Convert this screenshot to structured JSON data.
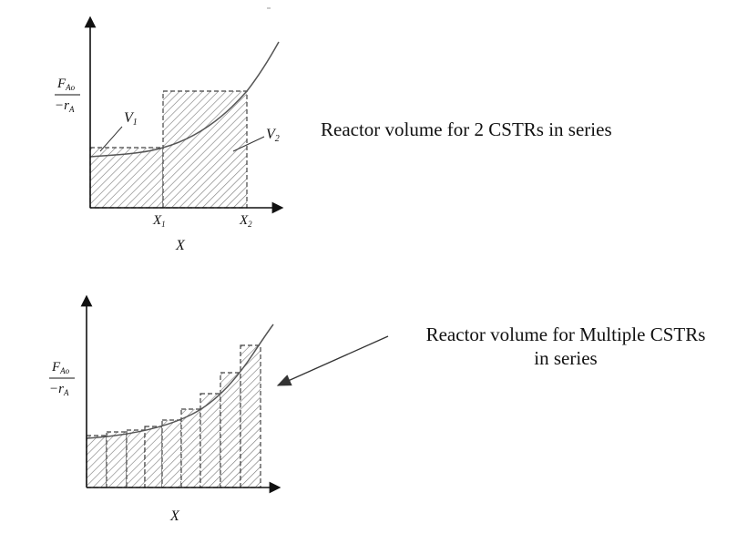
{
  "diagram_top": {
    "y_label_num": "F",
    "y_label_num_sub": "Ao",
    "y_label_den": "−r",
    "y_label_den_sub": "A",
    "v1_label": "V",
    "v1_sub": "1",
    "v2_label": "V",
    "v2_sub": "2",
    "x1_label": "X",
    "x1_sub": "1",
    "x2_label": "X",
    "x2_sub": "2",
    "x_axis_label": "X",
    "caption": "Reactor volume for 2 CSTRs in series"
  },
  "diagram_bottom": {
    "y_label_num": "F",
    "y_label_num_sub": "Ao",
    "y_label_den": "−r",
    "y_label_den_sub": "A",
    "x_axis_label": "X",
    "caption": "Reactor volume for Multiple CSTRs in series"
  }
}
